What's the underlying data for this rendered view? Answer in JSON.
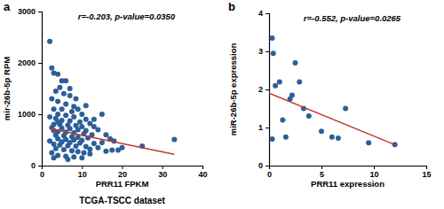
{
  "chart_data": [
    {
      "type": "scatter",
      "panel": "a",
      "annotations": [
        "r=-0.203, p-value=0.0350"
      ],
      "x_label": "PRR11 FPKM",
      "y_label": "mir-26b-5p RPM",
      "title": "TCGA-TSCC dataset",
      "xlim": [
        0,
        40
      ],
      "xticks": [
        0,
        10,
        20,
        30,
        40
      ],
      "ylim": [
        0,
        3000
      ],
      "yticks": [
        0,
        1000,
        2000,
        3000
      ],
      "series": [
        {
          "type": "scatter",
          "color": "#2c5f99",
          "marker": "circle",
          "x": [
            2,
            2.5,
            3,
            4,
            5,
            4.5,
            6,
            3.5,
            5.5,
            7,
            2.5,
            4,
            6,
            8,
            3,
            5,
            7.5,
            9,
            10,
            4,
            6,
            2,
            3.5,
            8,
            11,
            5,
            7,
            9.5,
            12,
            3,
            4.5,
            6.5,
            8.5,
            10,
            13,
            2.5,
            5,
            7,
            9,
            11,
            14,
            3,
            4,
            6,
            8,
            10.5,
            12.5,
            3.5,
            5.5,
            7.5,
            9,
            11.5,
            4,
            6,
            8,
            10,
            2,
            5,
            7,
            9.5,
            13,
            3,
            4.5,
            6.5,
            8.5,
            11,
            16,
            15,
            17,
            18,
            19,
            20,
            17.5,
            16,
            3.5,
            5.5,
            7.5,
            9,
            10.5,
            12,
            4,
            6,
            8,
            2.5,
            25,
            33,
            14,
            12,
            6.5,
            3,
            10,
            11,
            13,
            15,
            4,
            7,
            8.5
          ],
          "values": [
            2420,
            1900,
            1800,
            1780,
            1650,
            1520,
            1650,
            1450,
            1400,
            1360,
            1300,
            1250,
            1200,
            1150,
            1100,
            1100,
            1050,
            1100,
            1000,
            1000,
            980,
            950,
            920,
            950,
            900,
            880,
            870,
            850,
            820,
            800,
            800,
            790,
            780,
            760,
            760,
            740,
            730,
            720,
            700,
            680,
            700,
            680,
            660,
            650,
            640,
            620,
            600,
            590,
            580,
            560,
            550,
            540,
            520,
            510,
            500,
            490,
            480,
            460,
            450,
            440,
            430,
            420,
            400,
            390,
            380,
            370,
            600,
            450,
            520,
            480,
            300,
            350,
            300,
            280,
            330,
            310,
            290,
            270,
            250,
            230,
            200,
            180,
            170,
            250,
            380,
            510,
            350,
            320,
            120,
            150,
            150,
            1170,
            900,
            1000,
            850,
            1500,
            1300
          ]
        },
        {
          "type": "line",
          "color": "#c0392b",
          "line_style": "solid",
          "x": [
            2,
            33
          ],
          "values": [
            720,
            220
          ]
        }
      ]
    },
    {
      "type": "scatter",
      "panel": "b",
      "annotations": [
        "r=-0.552, p-value=0.0265"
      ],
      "x_label": "PRR11 expression",
      "y_label": "miR-26b-5p expression",
      "xlim": [
        0,
        15
      ],
      "xticks": [
        0,
        5,
        10,
        15
      ],
      "ylim": [
        0,
        4
      ],
      "yticks": [
        0,
        1,
        2,
        3,
        4
      ],
      "series": [
        {
          "type": "scatter",
          "color": "#2c5f99",
          "marker": "circle",
          "x": [
            0.3,
            0.6,
            0.4,
            1,
            1.3,
            1.6,
            2,
            2.2,
            2.5,
            2.9,
            3.3,
            3.8,
            5,
            6,
            6.6,
            7.3,
            9.5,
            12,
            0.3
          ],
          "values": [
            3.35,
            2.1,
            2.95,
            2.2,
            1.2,
            0.75,
            1.75,
            1.85,
            2.7,
            2.2,
            1.5,
            1.3,
            0.9,
            0.75,
            0.72,
            1.5,
            0.6,
            0.55,
            0.7
          ]
        },
        {
          "type": "line",
          "color": "#c0392b",
          "line_style": "solid",
          "x": [
            0,
            12
          ],
          "values": [
            1.9,
            0.55
          ]
        }
      ]
    }
  ]
}
